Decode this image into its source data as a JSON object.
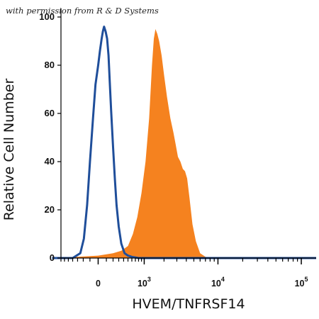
{
  "watermark": "with permission from R & D Systems",
  "colors": {
    "filled": "#f5821f",
    "outline": "#1f4e9a",
    "axis": "#000000"
  },
  "chart_data": {
    "type": "area",
    "title": "",
    "xlabel": "HVEM/TNFRSF14",
    "ylabel": "Relative Cell Number",
    "ylim": [
      0,
      100
    ],
    "y_ticks": [
      0,
      20,
      40,
      60,
      80,
      100
    ],
    "xscale": "biexponential",
    "x_ticks": [
      {
        "value": 0,
        "base": "0",
        "exp": ""
      },
      {
        "value": 1000,
        "base": "10",
        "exp": "3"
      },
      {
        "value": 10000,
        "base": "10",
        "exp": "4"
      },
      {
        "value": 100000,
        "base": "10",
        "exp": "5"
      }
    ],
    "series": [
      {
        "style": "filled",
        "color": "#f5821f",
        "points": [
          [
            -700,
            0
          ],
          [
            -300,
            0.5
          ],
          [
            0,
            1
          ],
          [
            200,
            2
          ],
          [
            350,
            3
          ],
          [
            500,
            5
          ],
          [
            630,
            10
          ],
          [
            760,
            17
          ],
          [
            900,
            27
          ],
          [
            1050,
            40
          ],
          [
            1200,
            58
          ],
          [
            1330,
            80
          ],
          [
            1420,
            91
          ],
          [
            1500,
            95
          ],
          [
            1600,
            93
          ],
          [
            1700,
            90
          ],
          [
            1850,
            84
          ],
          [
            2000,
            76
          ],
          [
            2200,
            67
          ],
          [
            2450,
            58
          ],
          [
            2700,
            52
          ],
          [
            2900,
            47
          ],
          [
            3100,
            42
          ],
          [
            3350,
            40
          ],
          [
            3600,
            37
          ],
          [
            3850,
            36
          ],
          [
            4100,
            33
          ],
          [
            4400,
            25
          ],
          [
            4800,
            14
          ],
          [
            5300,
            7
          ],
          [
            6000,
            2
          ],
          [
            7000,
            0.5
          ],
          [
            8000,
            0
          ]
        ]
      },
      {
        "style": "outline",
        "color": "#1f4e9a",
        "points": [
          [
            -1000,
            0
          ],
          [
            -400,
            0
          ],
          [
            -250,
            2
          ],
          [
            -190,
            8
          ],
          [
            -140,
            22
          ],
          [
            -100,
            40
          ],
          [
            -60,
            58
          ],
          [
            -30,
            72
          ],
          [
            0,
            80
          ],
          [
            20,
            86
          ],
          [
            40,
            91
          ],
          [
            55,
            94
          ],
          [
            70,
            96
          ],
          [
            90,
            94
          ],
          [
            110,
            91
          ],
          [
            130,
            84
          ],
          [
            150,
            72
          ],
          [
            170,
            61
          ],
          [
            200,
            46
          ],
          [
            230,
            33
          ],
          [
            260,
            22
          ],
          [
            300,
            13
          ],
          [
            350,
            6
          ],
          [
            420,
            2
          ],
          [
            500,
            1
          ],
          [
            600,
            0.5
          ],
          [
            800,
            0
          ],
          [
            100000,
            0
          ],
          [
            200000,
            0
          ]
        ]
      }
    ]
  }
}
